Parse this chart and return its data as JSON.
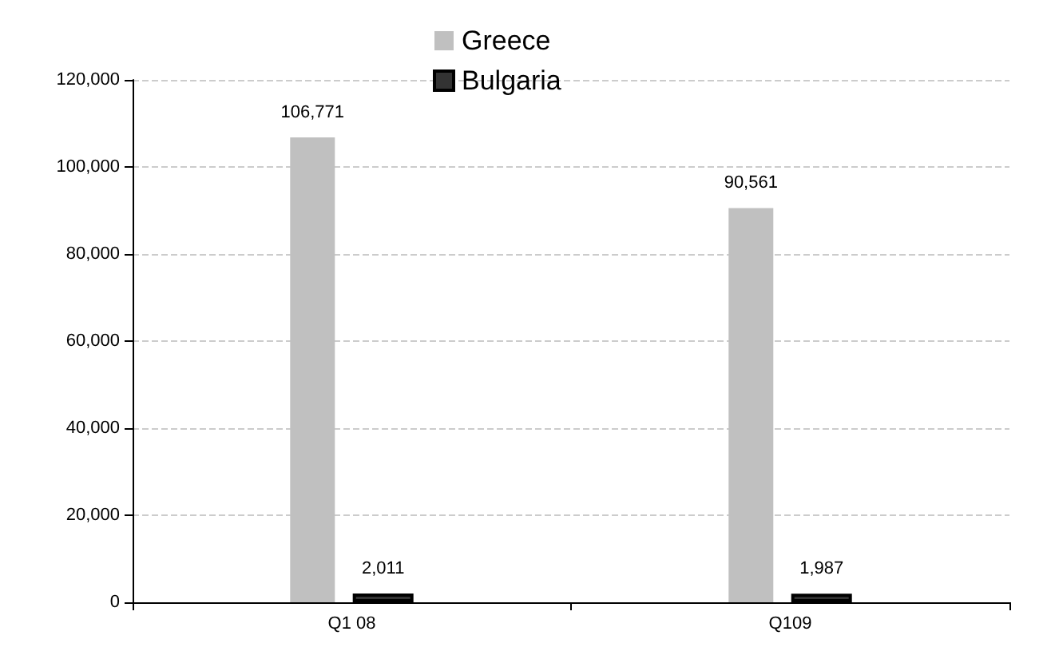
{
  "chart_data": {
    "type": "bar",
    "categories": [
      "Q1 08",
      "Q109"
    ],
    "series": [
      {
        "name": "Greece",
        "color": "#c0c0c0",
        "values": [
          106771,
          90561
        ],
        "value_labels": [
          "106,771",
          "90,561"
        ]
      },
      {
        "name": "Bulgaria",
        "color": "#333333",
        "values": [
          2011,
          1987
        ],
        "value_labels": [
          "2,011",
          "1,987"
        ]
      }
    ],
    "ylim": [
      0,
      120000
    ],
    "yticks": [
      0,
      {
        "value": 20000,
        "label": "20,000"
      },
      {
        "value": 40000,
        "label": "40,000"
      },
      {
        "value": 60000,
        "label": "60,000"
      },
      {
        "value": 80000,
        "label": "80,000"
      },
      {
        "value": 100000,
        "label": "100,000"
      },
      {
        "value": 120000,
        "label": "120,000"
      }
    ],
    "grid": "y",
    "legend": "top"
  }
}
